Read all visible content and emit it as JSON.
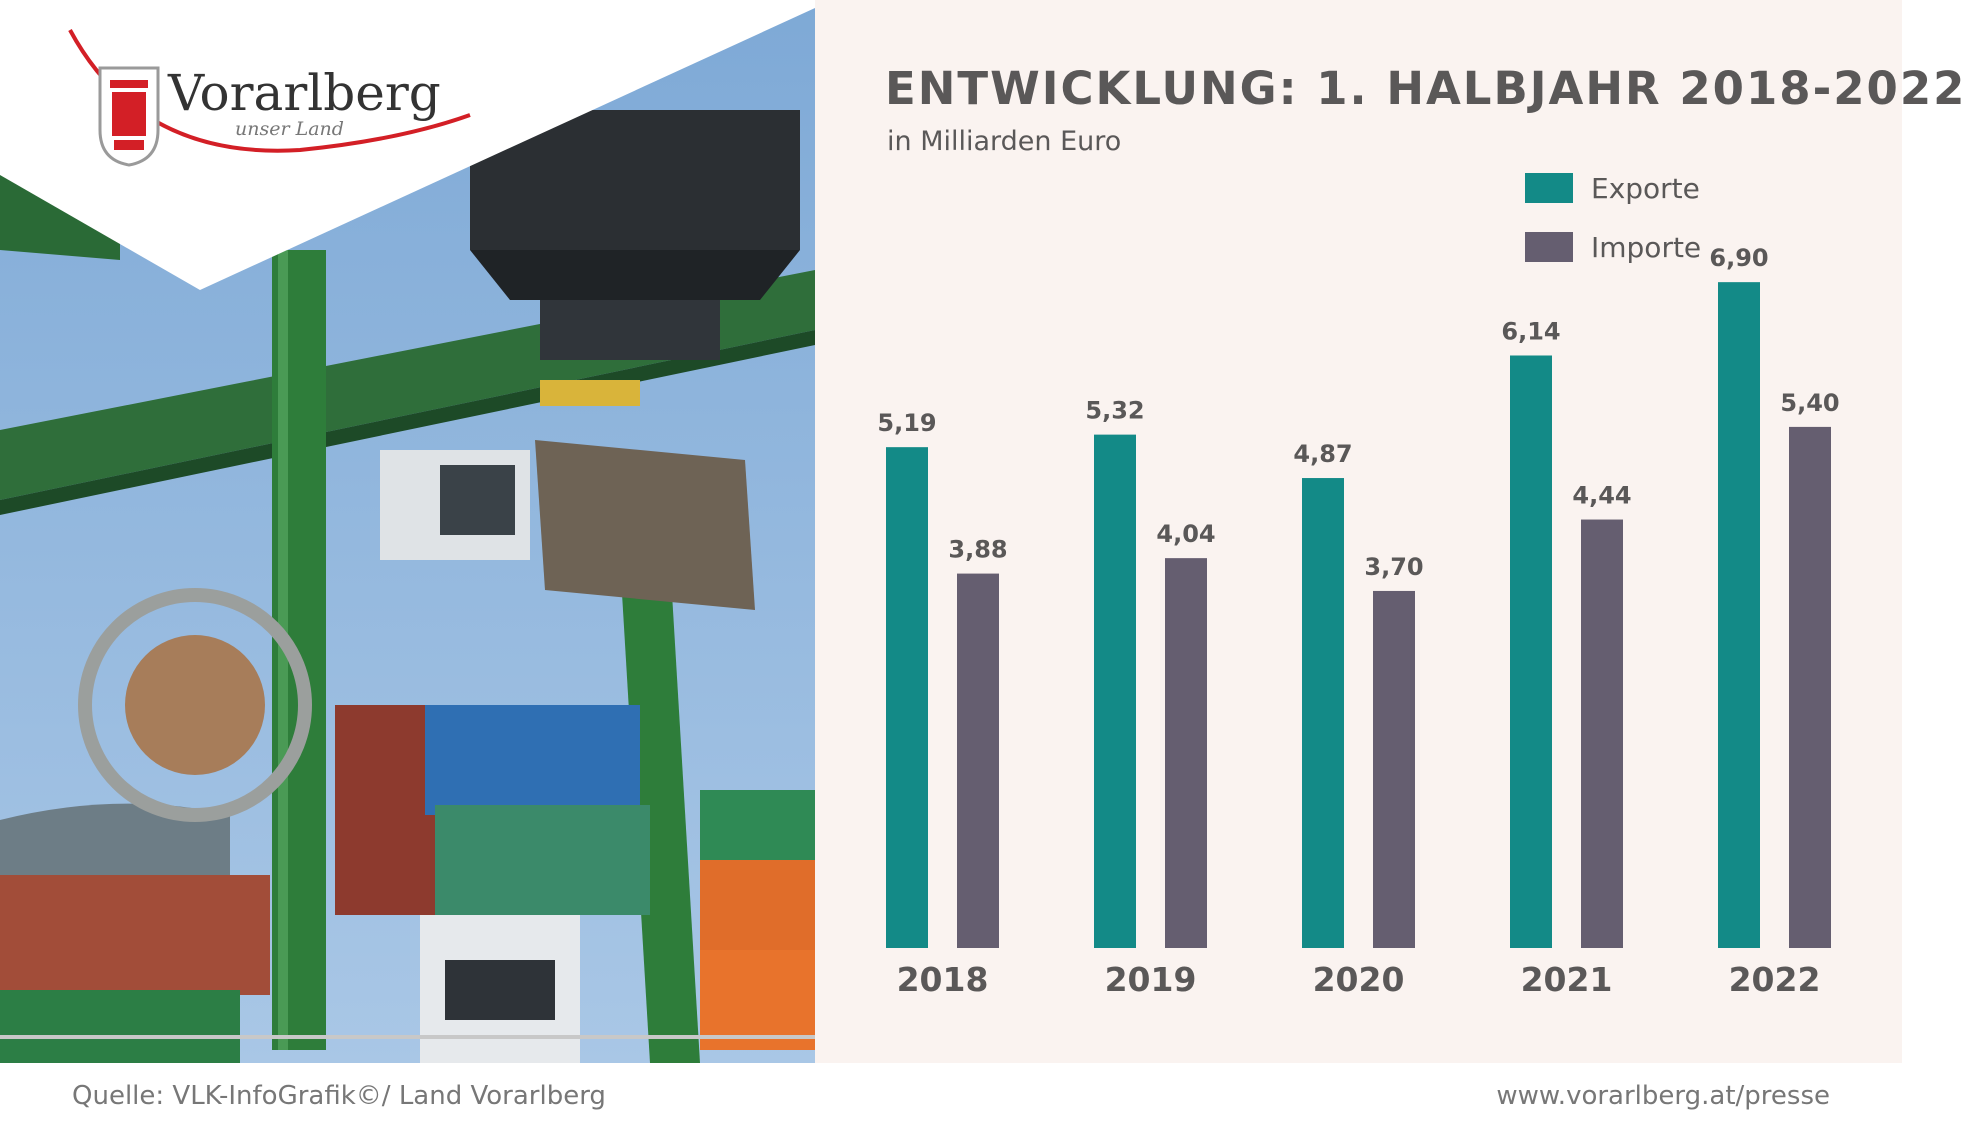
{
  "logo": {
    "name": "Vorarlberg",
    "tagline": "unser Land"
  },
  "chart_data": {
    "type": "bar",
    "title": "ENTWICKLUNG: 1. HALBJAHR 2018-2022",
    "subtitle": "in Milliarden Euro",
    "categories": [
      "2018",
      "2019",
      "2020",
      "2021",
      "2022"
    ],
    "series": [
      {
        "name": "Exporte",
        "color": "#138a87",
        "values": [
          5.19,
          5.32,
          4.87,
          6.14,
          6.9
        ],
        "labels": [
          "5,19",
          "5,32",
          "4,87",
          "6,14",
          "6,90"
        ]
      },
      {
        "name": "Importe",
        "color": "#655e70",
        "values": [
          3.88,
          4.04,
          3.7,
          4.44,
          5.4
        ],
        "labels": [
          "3,88",
          "4,04",
          "3,70",
          "4,44",
          "5,40"
        ]
      }
    ],
    "ylim": [
      0,
      7
    ],
    "grid": false,
    "legend_position": "top-right"
  },
  "footer": {
    "source": "Quelle: VLK-InfoGrafik©/ Land Vorarlberg",
    "website": "www.vorarlberg.at/presse"
  },
  "colors": {
    "accent_red": "#d31f26",
    "background": "#faf3f0",
    "text": "#5a5858"
  }
}
